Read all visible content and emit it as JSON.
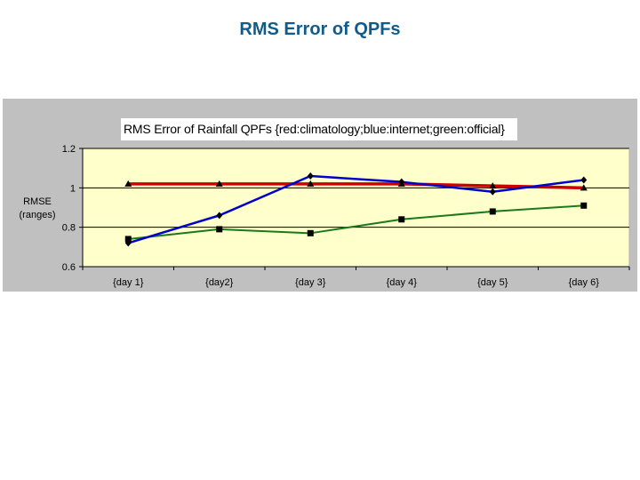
{
  "slide": {
    "title": "RMS Error of QPFs"
  },
  "chart": {
    "title": "RMS Error of Rainfall QPFs {red:climatology;blue:internet;green:official}",
    "ylabel_line1": "RMSE",
    "ylabel_line2": "(ranges)",
    "colors": {
      "panel_bg": "#c0c0c0",
      "plot_bg": "#ffffcc",
      "title_color": "#0f5c8c",
      "red": "#cc0000",
      "blue": "#0000cc",
      "green": "#1a7a1a"
    }
  },
  "chart_data": {
    "type": "line",
    "title": "RMS Error of Rainfall QPFs {red:climatology;blue:internet;green:official}",
    "xlabel": "",
    "ylabel": "RMSE (ranges)",
    "categories": [
      "{day 1}",
      "{day2}",
      "{day 3}",
      "{day 4}",
      "{day 5}",
      "{day 6}"
    ],
    "yticks": [
      "0.6",
      "0.8",
      "1",
      "1.2"
    ],
    "ylim": [
      0.6,
      1.2
    ],
    "grid": true,
    "legend_position": "in title",
    "series": [
      {
        "name": "climatology",
        "color": "red",
        "marker": "triangle",
        "values": [
          1.02,
          1.02,
          1.02,
          1.02,
          1.01,
          1.0
        ]
      },
      {
        "name": "internet",
        "color": "blue",
        "marker": "diamond",
        "values": [
          0.72,
          0.86,
          1.06,
          1.03,
          0.98,
          1.04
        ]
      },
      {
        "name": "official",
        "color": "green",
        "marker": "square",
        "values": [
          0.74,
          0.79,
          0.77,
          0.84,
          0.88,
          0.91
        ]
      }
    ]
  }
}
